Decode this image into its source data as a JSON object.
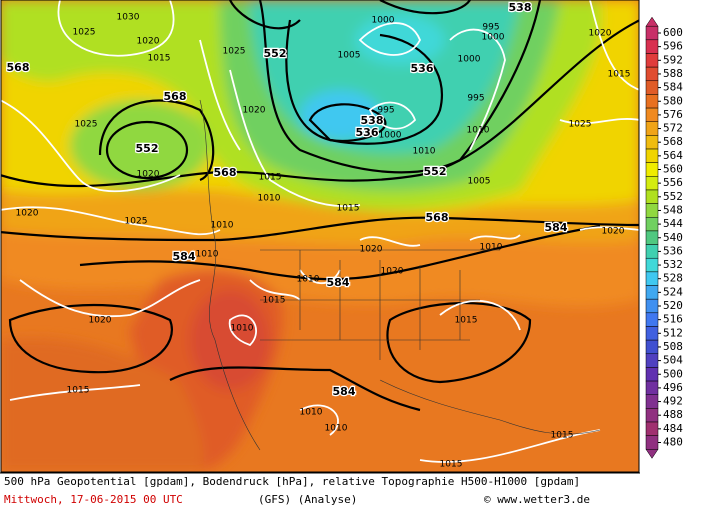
{
  "header": {
    "title": "500 hPa Geopotential [gpdam], Bodendruck [hPa], relative Topographie H500-H1000 [gpdam]",
    "date": "Mittwoch, 17-06-2015  00 UTC",
    "model": "(GFS)  (Analyse)",
    "credit": "© www.wetter3.de"
  },
  "colorbar": {
    "levels": [
      600,
      596,
      592,
      588,
      584,
      580,
      576,
      572,
      568,
      564,
      560,
      556,
      552,
      548,
      544,
      540,
      536,
      532,
      528,
      524,
      520,
      516,
      512,
      508,
      504,
      500,
      496,
      492,
      488,
      484,
      480
    ],
    "colors": [
      "#c83068",
      "#d83050",
      "#e03c3c",
      "#e04c30",
      "#e05c28",
      "#e87020",
      "#f08a20",
      "#f0a418",
      "#f0bc10",
      "#f0d400",
      "#f0ec00",
      "#d4ec10",
      "#b0e020",
      "#90d840",
      "#70d060",
      "#50c880",
      "#40d0b0",
      "#40d8d8",
      "#40c8f0",
      "#40a8f0",
      "#4090f0",
      "#4078f0",
      "#4060e0",
      "#4050d0",
      "#5040c0",
      "#6030b0",
      "#7030a0",
      "#803090",
      "#903080",
      "#a03070",
      "#903080"
    ]
  },
  "geopotential_labels": [
    552,
    568,
    568,
    552,
    536,
    538,
    536,
    552,
    568,
    568,
    584,
    584,
    584,
    584,
    538
  ],
  "pressure_labels": [
    1030,
    1025,
    1020,
    1015,
    1025,
    1020,
    1020,
    1025,
    1010,
    1010,
    1025,
    1020,
    1015,
    1010,
    1015,
    1000,
    1005,
    995,
    1000,
    1000,
    995,
    995,
    1000,
    1010,
    1005,
    1010,
    1020,
    1015,
    1025,
    1020,
    1010,
    1020,
    1020,
    1010,
    1015,
    1010,
    1020,
    1015,
    1010,
    1010,
    1015,
    1015,
    1015
  ]
}
